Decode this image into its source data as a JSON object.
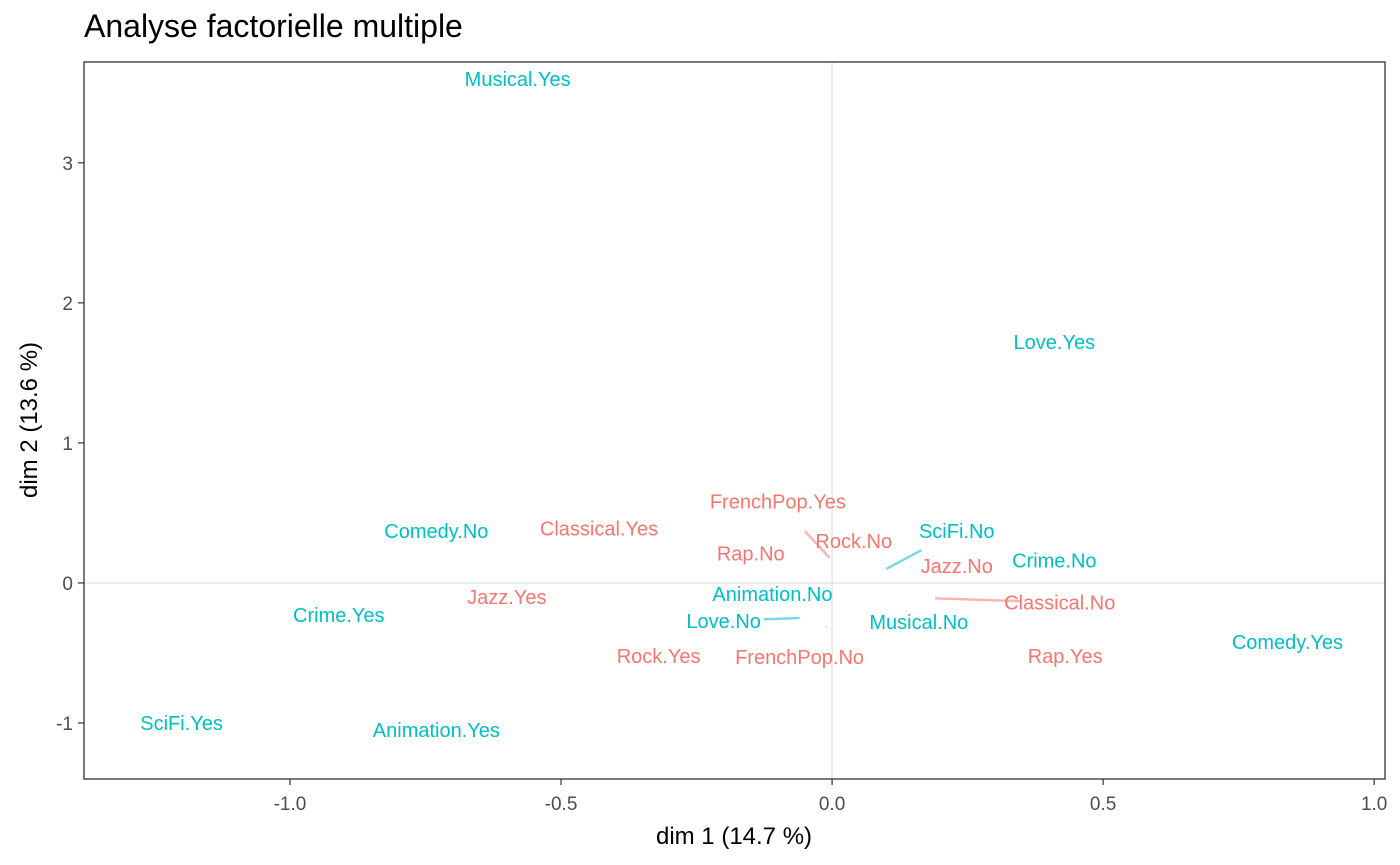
{
  "chart_data": {
    "type": "scatter",
    "title": "Analyse factorielle multiple",
    "xlabel": "dim 1 (14.7 %)",
    "ylabel": "dim 2 (13.6 %)",
    "xlim": [
      -1.38,
      1.02
    ],
    "ylim": [
      -1.4,
      3.72
    ],
    "x_ticks": [
      {
        "value": -1.0,
        "label": "-1.0"
      },
      {
        "value": -0.5,
        "label": "-0.5"
      },
      {
        "value": 0.0,
        "label": "0.0"
      },
      {
        "value": 0.5,
        "label": "0.5"
      },
      {
        "value": 1.0,
        "label": "1.0"
      }
    ],
    "y_ticks": [
      {
        "value": -1,
        "label": "-1"
      },
      {
        "value": 0,
        "label": "0"
      },
      {
        "value": 1,
        "label": "1"
      },
      {
        "value": 2,
        "label": "2"
      },
      {
        "value": 3,
        "label": "3"
      }
    ],
    "reference_lines": {
      "x": 0,
      "y": 0
    },
    "grid": false,
    "colors": {
      "group1": "#F8766D",
      "group2": "#00BFC4"
    },
    "points": [
      {
        "label": "Musical.Yes",
        "group": "group2",
        "x": -0.58,
        "y": 3.6
      },
      {
        "label": "Love.Yes",
        "group": "group2",
        "x": 0.41,
        "y": 1.72
      },
      {
        "label": "FrenchPop.Yes",
        "group": "group1",
        "x": -0.1,
        "y": 0.58,
        "anchor": {
          "x": -0.005,
          "y": 0.18
        }
      },
      {
        "label": "Comedy.No",
        "group": "group2",
        "x": -0.73,
        "y": 0.37
      },
      {
        "label": "Classical.Yes",
        "group": "group1",
        "x": -0.43,
        "y": 0.39
      },
      {
        "label": "Rock.No",
        "group": "group1",
        "x": 0.04,
        "y": 0.3
      },
      {
        "label": "SciFi.No",
        "group": "group2",
        "x": 0.23,
        "y": 0.37,
        "anchor": {
          "x": 0.1,
          "y": 0.1
        }
      },
      {
        "label": "Rap.No",
        "group": "group1",
        "x": -0.15,
        "y": 0.21
      },
      {
        "label": "Crime.No",
        "group": "group2",
        "x": 0.41,
        "y": 0.16
      },
      {
        "label": "Jazz.No",
        "group": "group1",
        "x": 0.23,
        "y": 0.12
      },
      {
        "label": "Animation.No",
        "group": "group2",
        "x": -0.11,
        "y": -0.08
      },
      {
        "label": "Jazz.Yes",
        "group": "group1",
        "x": -0.6,
        "y": -0.1
      },
      {
        "label": "Classical.No",
        "group": "group1",
        "x": 0.42,
        "y": -0.14,
        "anchor": {
          "x": 0.19,
          "y": -0.11
        }
      },
      {
        "label": "Crime.Yes",
        "group": "group2",
        "x": -0.91,
        "y": -0.23
      },
      {
        "label": "Love.No",
        "group": "group2",
        "x": -0.2,
        "y": -0.27,
        "anchor": {
          "x": -0.06,
          "y": -0.25
        }
      },
      {
        "label": "Musical.No",
        "group": "group2",
        "x": 0.16,
        "y": -0.28
      },
      {
        "label": "Comedy.Yes",
        "group": "group2",
        "x": 0.84,
        "y": -0.42
      },
      {
        "label": "Rock.Yes",
        "group": "group1",
        "x": -0.32,
        "y": -0.52
      },
      {
        "label": "FrenchPop.No",
        "group": "group1",
        "x": -0.06,
        "y": -0.53,
        "anchor": {
          "x": -0.01,
          "y": -0.31
        }
      },
      {
        "label": "Rap.Yes",
        "group": "group1",
        "x": 0.43,
        "y": -0.52
      },
      {
        "label": "SciFi.Yes",
        "group": "group2",
        "x": -1.2,
        "y": -1.0
      },
      {
        "label": "Animation.Yes",
        "group": "group2",
        "x": -0.73,
        "y": -1.05
      }
    ]
  }
}
